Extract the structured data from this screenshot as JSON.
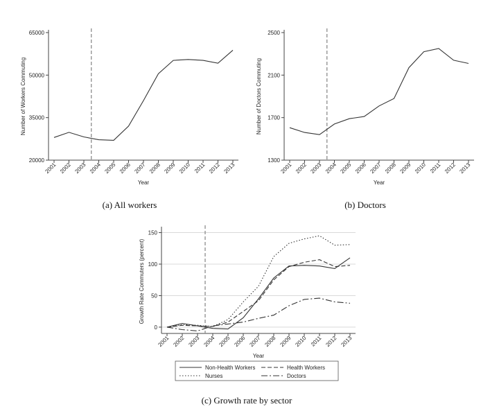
{
  "captions": {
    "a": "(a) All workers",
    "b": "(b) Doctors",
    "c": "(c) Growth rate by sector"
  },
  "colors": {
    "line": "#333333",
    "vline": "#8c8c8c",
    "grid": "#d9d9d9"
  },
  "chart_data": [
    {
      "type": "line",
      "id": "a",
      "xlabel": "Year",
      "ylabel": "Number of Workers Commuting",
      "x": [
        "2001",
        "2002",
        "2003",
        "2004",
        "2005",
        "2006",
        "2007",
        "2008",
        "2009",
        "2010",
        "2011",
        "2012",
        "2013"
      ],
      "ylim": [
        20000,
        65000
      ],
      "yticks": [
        20000,
        35000,
        50000,
        65000
      ],
      "grid": false,
      "vline_at": "2003.5",
      "series": [
        {
          "style": "solid",
          "values": [
            28000,
            29800,
            28200,
            27200,
            27000,
            32000,
            41000,
            50500,
            55200,
            55500,
            55200,
            54200,
            58800
          ]
        }
      ]
    },
    {
      "type": "line",
      "id": "b",
      "xlabel": "Year",
      "ylabel": "Number of Doctors Commuting",
      "x": [
        "2001",
        "2002",
        "2003",
        "2004",
        "2005",
        "2006",
        "2007",
        "2008",
        "2009",
        "2010",
        "2011",
        "2012",
        "2013"
      ],
      "ylim": [
        1300,
        2500
      ],
      "yticks": [
        1300,
        1700,
        2100,
        2500
      ],
      "grid": false,
      "vline_at": "2003.5",
      "series": [
        {
          "style": "solid",
          "values": [
            1605,
            1560,
            1540,
            1640,
            1690,
            1710,
            1810,
            1880,
            2170,
            2320,
            2350,
            2240,
            2210
          ]
        }
      ]
    },
    {
      "type": "line",
      "id": "c",
      "xlabel": "Year",
      "ylabel": "Growth Rate Commuters (percent)",
      "x": [
        "2001",
        "2002",
        "2003",
        "2004",
        "2005",
        "2006",
        "2007",
        "2008",
        "2009",
        "2010",
        "2011",
        "2012",
        "2013"
      ],
      "ylim": [
        -10,
        155
      ],
      "yticks": [
        0,
        50,
        100,
        150
      ],
      "grid": true,
      "vline_at": "2003.5",
      "legend_position": "bottom",
      "series": [
        {
          "name": "Non-Health Workers",
          "style": "solid",
          "values": [
            0,
            6,
            2,
            -2,
            -3,
            15,
            45,
            78,
            97,
            98,
            97,
            93,
            110
          ]
        },
        {
          "name": "Health Workers",
          "style": "dashed",
          "values": [
            0,
            3,
            2,
            1,
            8,
            25,
            42,
            75,
            96,
            103,
            107,
            96,
            98
          ]
        },
        {
          "name": "Nurses",
          "style": "dotted",
          "values": [
            0,
            4,
            3,
            1,
            12,
            40,
            65,
            112,
            133,
            140,
            145,
            130,
            131
          ]
        },
        {
          "name": "Doctors",
          "style": "dashdot",
          "values": [
            0,
            -4,
            -6,
            2,
            5,
            8,
            14,
            19,
            34,
            44,
            46,
            40,
            38
          ]
        }
      ]
    }
  ]
}
